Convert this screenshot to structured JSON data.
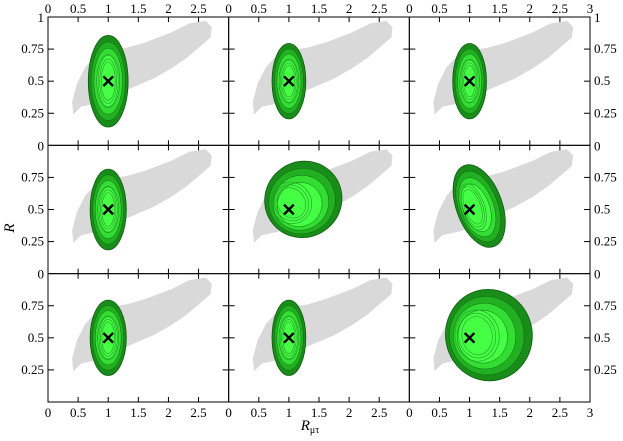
{
  "chart_data": {
    "type": "contour-grid",
    "rows": 3,
    "cols": 3,
    "xlabel": "R",
    "xlabel_subscript": "μτ",
    "ylabel": "R",
    "xlim": [
      0,
      3
    ],
    "ylim": [
      0,
      1
    ],
    "x_ticks": [
      0,
      0.5,
      1,
      1.5,
      2,
      2.5,
      3
    ],
    "x_tick_labels_left_col": [
      "0",
      "0.5",
      "1",
      "1.5",
      "2",
      "2.5"
    ],
    "x_tick_labels_middle_col": [
      "0",
      "0.5",
      "1",
      "1.5",
      "2",
      "2.5"
    ],
    "x_tick_labels_right_col": [
      "0",
      "0.5",
      "1",
      "1.5",
      "2",
      "2.5",
      "3"
    ],
    "y_ticks": [
      0.25,
      0.5,
      0.75
    ],
    "y_tick_labels": [
      "0.25",
      "0.5",
      "0.75"
    ],
    "y_top_label": "1",
    "y_bottom_label_left": "0",
    "y_bottom_label_right": "0",
    "true_point": {
      "x": 1.0,
      "y": 0.5,
      "marker": "cross"
    },
    "colors": {
      "region_gray": "#d9d9d9",
      "green_outer": "#1a8c1a",
      "green_mid": "#22b022",
      "green_inner": "#33dd33",
      "green_core": "#44ff44"
    },
    "panels": [
      {
        "row": 0,
        "col": 0,
        "rx": 0.33,
        "ry": 0.17,
        "tilt": 0
      },
      {
        "row": 0,
        "col": 1,
        "rx": 0.28,
        "ry": 0.14,
        "tilt": 0
      },
      {
        "row": 0,
        "col": 2,
        "rx": 0.28,
        "ry": 0.14,
        "tilt": 0
      },
      {
        "row": 1,
        "col": 0,
        "rx": 0.3,
        "ry": 0.15,
        "tilt": 0
      },
      {
        "row": 1,
        "col": 1,
        "rx": 0.65,
        "ry": 0.14,
        "tilt": 35
      },
      {
        "row": 1,
        "col": 2,
        "rx": 0.38,
        "ry": 0.16,
        "tilt": 20
      },
      {
        "row": 2,
        "col": 0,
        "rx": 0.3,
        "ry": 0.14,
        "tilt": 0
      },
      {
        "row": 2,
        "col": 1,
        "rx": 0.28,
        "ry": 0.14,
        "tilt": 0
      },
      {
        "row": 2,
        "col": 2,
        "rx": 0.72,
        "ry": 0.17,
        "tilt": 8
      }
    ]
  }
}
